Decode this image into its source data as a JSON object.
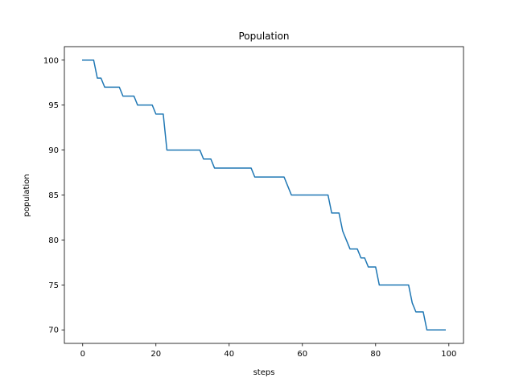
{
  "chart_data": {
    "type": "line",
    "title": "Population",
    "xlabel": "steps",
    "ylabel": "population",
    "xlim": [
      -5,
      104
    ],
    "ylim": [
      68.5,
      101.5
    ],
    "xticks": [
      0,
      20,
      40,
      60,
      80,
      100
    ],
    "yticks": [
      70,
      75,
      80,
      85,
      90,
      95,
      100
    ],
    "grid": false,
    "color": "#1f77b4",
    "series": [
      {
        "x": [
          0,
          1,
          2,
          3,
          4,
          5,
          6,
          7,
          8,
          9,
          10,
          11,
          12,
          13,
          14,
          15,
          16,
          17,
          18,
          19,
          20,
          21,
          22,
          23,
          24,
          25,
          26,
          27,
          28,
          29,
          30,
          31,
          32,
          33,
          34,
          35,
          36,
          37,
          38,
          39,
          40,
          41,
          42,
          43,
          44,
          45,
          46,
          47,
          48,
          49,
          50,
          51,
          52,
          53,
          54,
          55,
          56,
          57,
          58,
          59,
          60,
          61,
          62,
          63,
          64,
          65,
          66,
          67,
          68,
          69,
          70,
          71,
          72,
          73,
          74,
          75,
          76,
          77,
          78,
          79,
          80,
          81,
          82,
          83,
          84,
          85,
          86,
          87,
          88,
          89,
          90,
          91,
          92,
          93,
          94,
          95,
          96,
          97,
          98,
          99
        ],
        "values": [
          100,
          100,
          100,
          100,
          98,
          98,
          97,
          97,
          97,
          97,
          97,
          96,
          96,
          96,
          96,
          95,
          95,
          95,
          95,
          95,
          94,
          94,
          94,
          90,
          90,
          90,
          90,
          90,
          90,
          90,
          90,
          90,
          90,
          89,
          89,
          89,
          88,
          88,
          88,
          88,
          88,
          88,
          88,
          88,
          88,
          88,
          88,
          87,
          87,
          87,
          87,
          87,
          87,
          87,
          87,
          87,
          86,
          85,
          85,
          85,
          85,
          85,
          85,
          85,
          85,
          85,
          85,
          85,
          83,
          83,
          83,
          81,
          80,
          79,
          79,
          79,
          78,
          78,
          77,
          77,
          77,
          75,
          75,
          75,
          75,
          75,
          75,
          75,
          75,
          75,
          73,
          72,
          72,
          72,
          70,
          70,
          70,
          70,
          70,
          70
        ]
      }
    ]
  }
}
